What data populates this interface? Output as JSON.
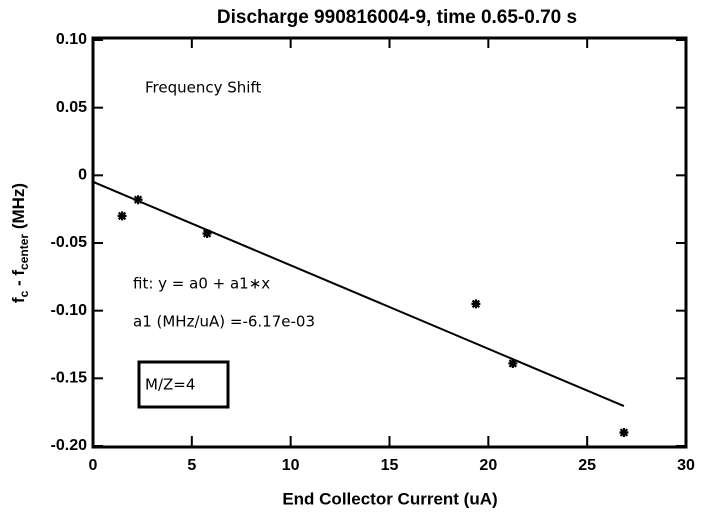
{
  "chart_data": {
    "type": "scatter",
    "title": "Discharge 990816004-9, time 0.65-0.70 s",
    "xlabel": "End Collector Current (uA)",
    "ylabel": {
      "f": "f",
      "sub1": "c",
      "mid": " - f",
      "sub2": "center",
      "unit": " (MHz)"
    },
    "annotations": [
      "Frequency Shift",
      "fit: y = a0 + a1∗x",
      "a1 (MHz/uA) =-6.17e-03",
      "M/Z=4"
    ],
    "series": [
      {
        "color": "#000000",
        "x": [
          1.47,
          2.28,
          5.77,
          19.37,
          21.24,
          26.86
        ],
        "values": [
          -0.03,
          -0.018,
          -0.043,
          -0.095,
          -0.139,
          -0.19
        ]
      }
    ],
    "fit_line": {
      "color": "#000000",
      "x": [
        0,
        26.86
      ],
      "values": [
        -0.0048,
        -0.1705
      ]
    },
    "xlim": [
      0,
      30
    ],
    "xticks": [
      0,
      5,
      10,
      15,
      20,
      25,
      30
    ],
    "ylim": [
      -0.2,
      0.1
    ],
    "yticks": [
      {
        "value": 0.1,
        "label": "0.10"
      },
      0.05,
      0,
      -0.05,
      {
        "value": -0.1,
        "label": "-0.10"
      },
      -0.15,
      {
        "value": -0.2,
        "label": "-0.20"
      }
    ],
    "grid": false
  }
}
